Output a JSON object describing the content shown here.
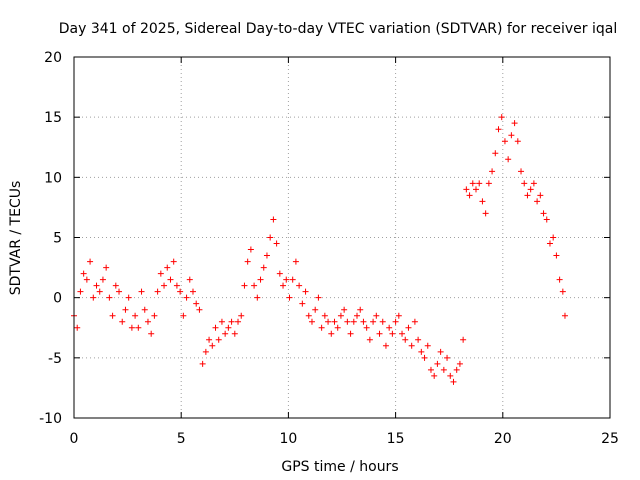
{
  "chart_data": {
    "type": "scatter",
    "title": "Day 341 of 2025, Sidereal Day-to-day VTEC variation (SDTVAR) for receiver iqal",
    "xlabel": "GPS time / hours",
    "ylabel": "SDTVAR / TECUs",
    "xlim": [
      0,
      25
    ],
    "ylim": [
      -10,
      20
    ],
    "xticks": [
      "0",
      "5",
      "10",
      "15",
      "20",
      "25"
    ],
    "yticks": [
      "-10",
      "-5",
      "0",
      "5",
      "10",
      "15",
      "20"
    ],
    "grid": true,
    "marker": "plus",
    "series": [
      {
        "name": "SDTVAR",
        "color": "#ff0000",
        "x": [
          0.0,
          0.15,
          0.3,
          0.45,
          0.6,
          0.75,
          0.9,
          1.05,
          1.2,
          1.35,
          1.5,
          1.65,
          1.8,
          1.95,
          2.1,
          2.25,
          2.4,
          2.55,
          2.7,
          2.85,
          3.0,
          3.15,
          3.3,
          3.45,
          3.6,
          3.75,
          3.9,
          4.05,
          4.2,
          4.35,
          4.5,
          4.65,
          4.8,
          4.95,
          5.1,
          5.25,
          5.4,
          5.55,
          5.7,
          5.85,
          6.0,
          6.15,
          6.3,
          6.45,
          6.6,
          6.75,
          6.9,
          7.05,
          7.2,
          7.35,
          7.5,
          7.65,
          7.8,
          7.95,
          8.1,
          8.25,
          8.4,
          8.55,
          8.7,
          8.85,
          9.0,
          9.15,
          9.3,
          9.45,
          9.6,
          9.75,
          9.9,
          10.05,
          10.2,
          10.35,
          10.5,
          10.65,
          10.8,
          10.95,
          11.1,
          11.25,
          11.4,
          11.55,
          11.7,
          11.85,
          12.0,
          12.15,
          12.3,
          12.45,
          12.6,
          12.75,
          12.9,
          13.05,
          13.2,
          13.35,
          13.5,
          13.65,
          13.8,
          13.95,
          14.1,
          14.25,
          14.4,
          14.55,
          14.7,
          14.85,
          15.0,
          15.15,
          15.3,
          15.45,
          15.6,
          15.75,
          15.9,
          16.05,
          16.2,
          16.35,
          16.5,
          16.65,
          16.8,
          16.95,
          17.1,
          17.25,
          17.4,
          17.55,
          17.7,
          17.85,
          18.0,
          18.15,
          18.3,
          18.45,
          18.6,
          18.75,
          18.9,
          19.05,
          19.2,
          19.35,
          19.5,
          19.65,
          19.8,
          19.95,
          20.1,
          20.25,
          20.4,
          20.55,
          20.7,
          20.85,
          21.0,
          21.15,
          21.3,
          21.45,
          21.6,
          21.75,
          21.9,
          22.05,
          22.2,
          22.35,
          22.5,
          22.65,
          22.8,
          22.9
        ],
        "y": [
          -1.5,
          -2.5,
          0.5,
          2.0,
          1.5,
          3.0,
          0.0,
          1.0,
          0.5,
          1.5,
          2.5,
          0.0,
          -1.5,
          1.0,
          0.5,
          -2.0,
          -1.0,
          0.0,
          -2.5,
          -1.5,
          -2.5,
          0.5,
          -1.0,
          -2.0,
          -3.0,
          -1.5,
          0.5,
          2.0,
          1.0,
          2.5,
          1.5,
          3.0,
          1.0,
          0.5,
          -1.5,
          0.0,
          1.5,
          0.5,
          -0.5,
          -1.0,
          -5.5,
          -4.5,
          -3.5,
          -4.0,
          -2.5,
          -3.5,
          -2.0,
          -3.0,
          -2.5,
          -2.0,
          -3.0,
          -2.0,
          -1.5,
          1.0,
          3.0,
          4.0,
          1.0,
          0.0,
          1.5,
          2.5,
          3.5,
          5.0,
          6.5,
          4.5,
          2.0,
          1.0,
          1.5,
          0.0,
          1.5,
          3.0,
          1.0,
          -0.5,
          0.5,
          -1.5,
          -2.0,
          -1.0,
          0.0,
          -2.5,
          -1.5,
          -2.0,
          -3.0,
          -2.0,
          -2.5,
          -1.5,
          -1.0,
          -2.0,
          -3.0,
          -2.0,
          -1.5,
          -1.0,
          -2.0,
          -2.5,
          -3.5,
          -2.0,
          -1.5,
          -3.0,
          -2.0,
          -4.0,
          -2.5,
          -3.0,
          -2.0,
          -1.5,
          -3.0,
          -3.5,
          -2.5,
          -4.0,
          -2.0,
          -3.5,
          -4.5,
          -5.0,
          -4.0,
          -6.0,
          -6.5,
          -5.5,
          -4.5,
          -6.0,
          -5.0,
          -6.5,
          -7.0,
          -6.0,
          -5.5,
          -3.5,
          9.0,
          8.5,
          9.5,
          9.0,
          9.5,
          8.0,
          7.0,
          9.5,
          10.5,
          12.0,
          14.0,
          15.0,
          13.0,
          11.5,
          13.5,
          14.5,
          13.0,
          10.5,
          9.5,
          8.5,
          9.0,
          9.5,
          8.0,
          8.5,
          7.0,
          6.5,
          4.5,
          5.0,
          3.5,
          1.5,
          0.5,
          -1.5
        ]
      }
    ]
  }
}
